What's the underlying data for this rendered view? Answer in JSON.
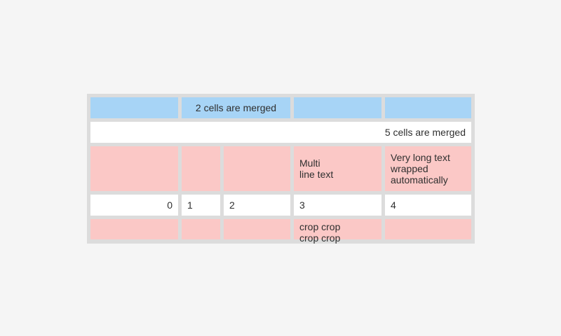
{
  "colors": {
    "page_bg": "#f5f5f5",
    "table_bg": "#dcdcdc",
    "cell_blue": "#a7d4f6",
    "cell_pink": "#fbc8c6",
    "cell_white": "#ffffff",
    "text": "#2f2f2f"
  },
  "table": {
    "row1": {
      "merged_label": "2 cells are merged"
    },
    "row2": {
      "merged_label": "5 cells are merged"
    },
    "row3": {
      "multiline_label": "Multi\nline text",
      "wrapped_label": "Very long text wrapped automatically"
    },
    "row4": {
      "values": [
        "0",
        "1",
        "2",
        "3",
        "4"
      ]
    },
    "row5": {
      "crop_label": "crop crop crop crop"
    }
  }
}
